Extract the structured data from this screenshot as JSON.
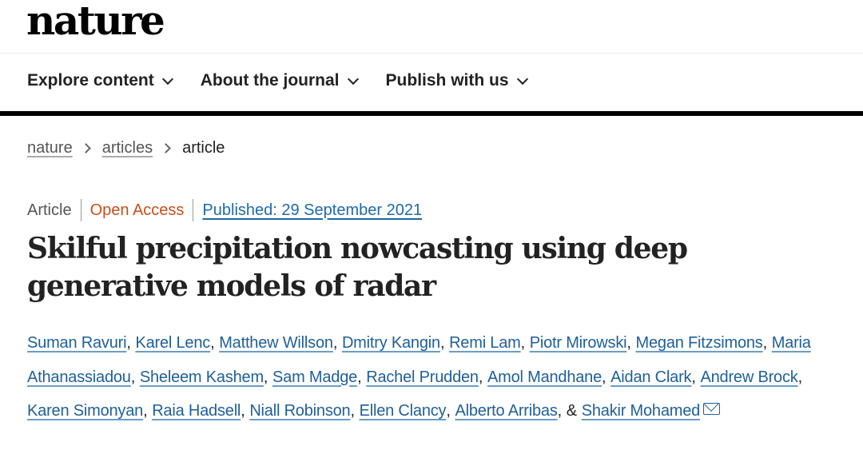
{
  "logo": "nature",
  "nav": [
    {
      "label": "Explore content"
    },
    {
      "label": "About the journal"
    },
    {
      "label": "Publish with us"
    }
  ],
  "breadcrumb": [
    "nature",
    "articles",
    "article"
  ],
  "meta": {
    "type": "Article",
    "access": "Open Access",
    "published": "Published: 29 September 2021",
    "access_color": "#c4501b",
    "link_color": "#1e5f99"
  },
  "title": "Skilful precipitation nowcasting using deep generative models of radar",
  "authors": [
    "Suman Ravuri",
    "Karel Lenc",
    "Matthew Willson",
    "Dmitry Kangin",
    "Remi Lam",
    "Piotr Mirowski",
    "Megan Fitzsimons",
    "Maria Athanassiadou",
    "Sheleem Kashem",
    "Sam Madge",
    "Rachel Prudden",
    "Amol Mandhane",
    "Aidan Clark",
    "Andrew Brock",
    "Karen Simonyan",
    "Raia Hadsell",
    "Niall Robinson",
    "Ellen Clancy",
    "Alberto Arribas"
  ],
  "last_author": "Shakir Mohamed",
  "ampersand": "&",
  "icons": {
    "nav_dropdown": "chevron-down-icon",
    "breadcrumb_sep": "chevron-right-icon",
    "corresponding": "mail-icon"
  }
}
